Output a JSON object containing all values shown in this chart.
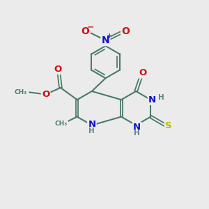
{
  "bg": "#ebebeb",
  "bc": "#4a7a6a",
  "bw": 1.5,
  "dbo": 0.05,
  "N_col": "#1010cc",
  "O_col": "#cc1010",
  "S_col": "#b8b800",
  "C_col": "#4a7a6a",
  "H_col": "#5a8a7a",
  "fs": 8.0,
  "xlim": [
    0,
    10
  ],
  "ylim": [
    0,
    10
  ]
}
